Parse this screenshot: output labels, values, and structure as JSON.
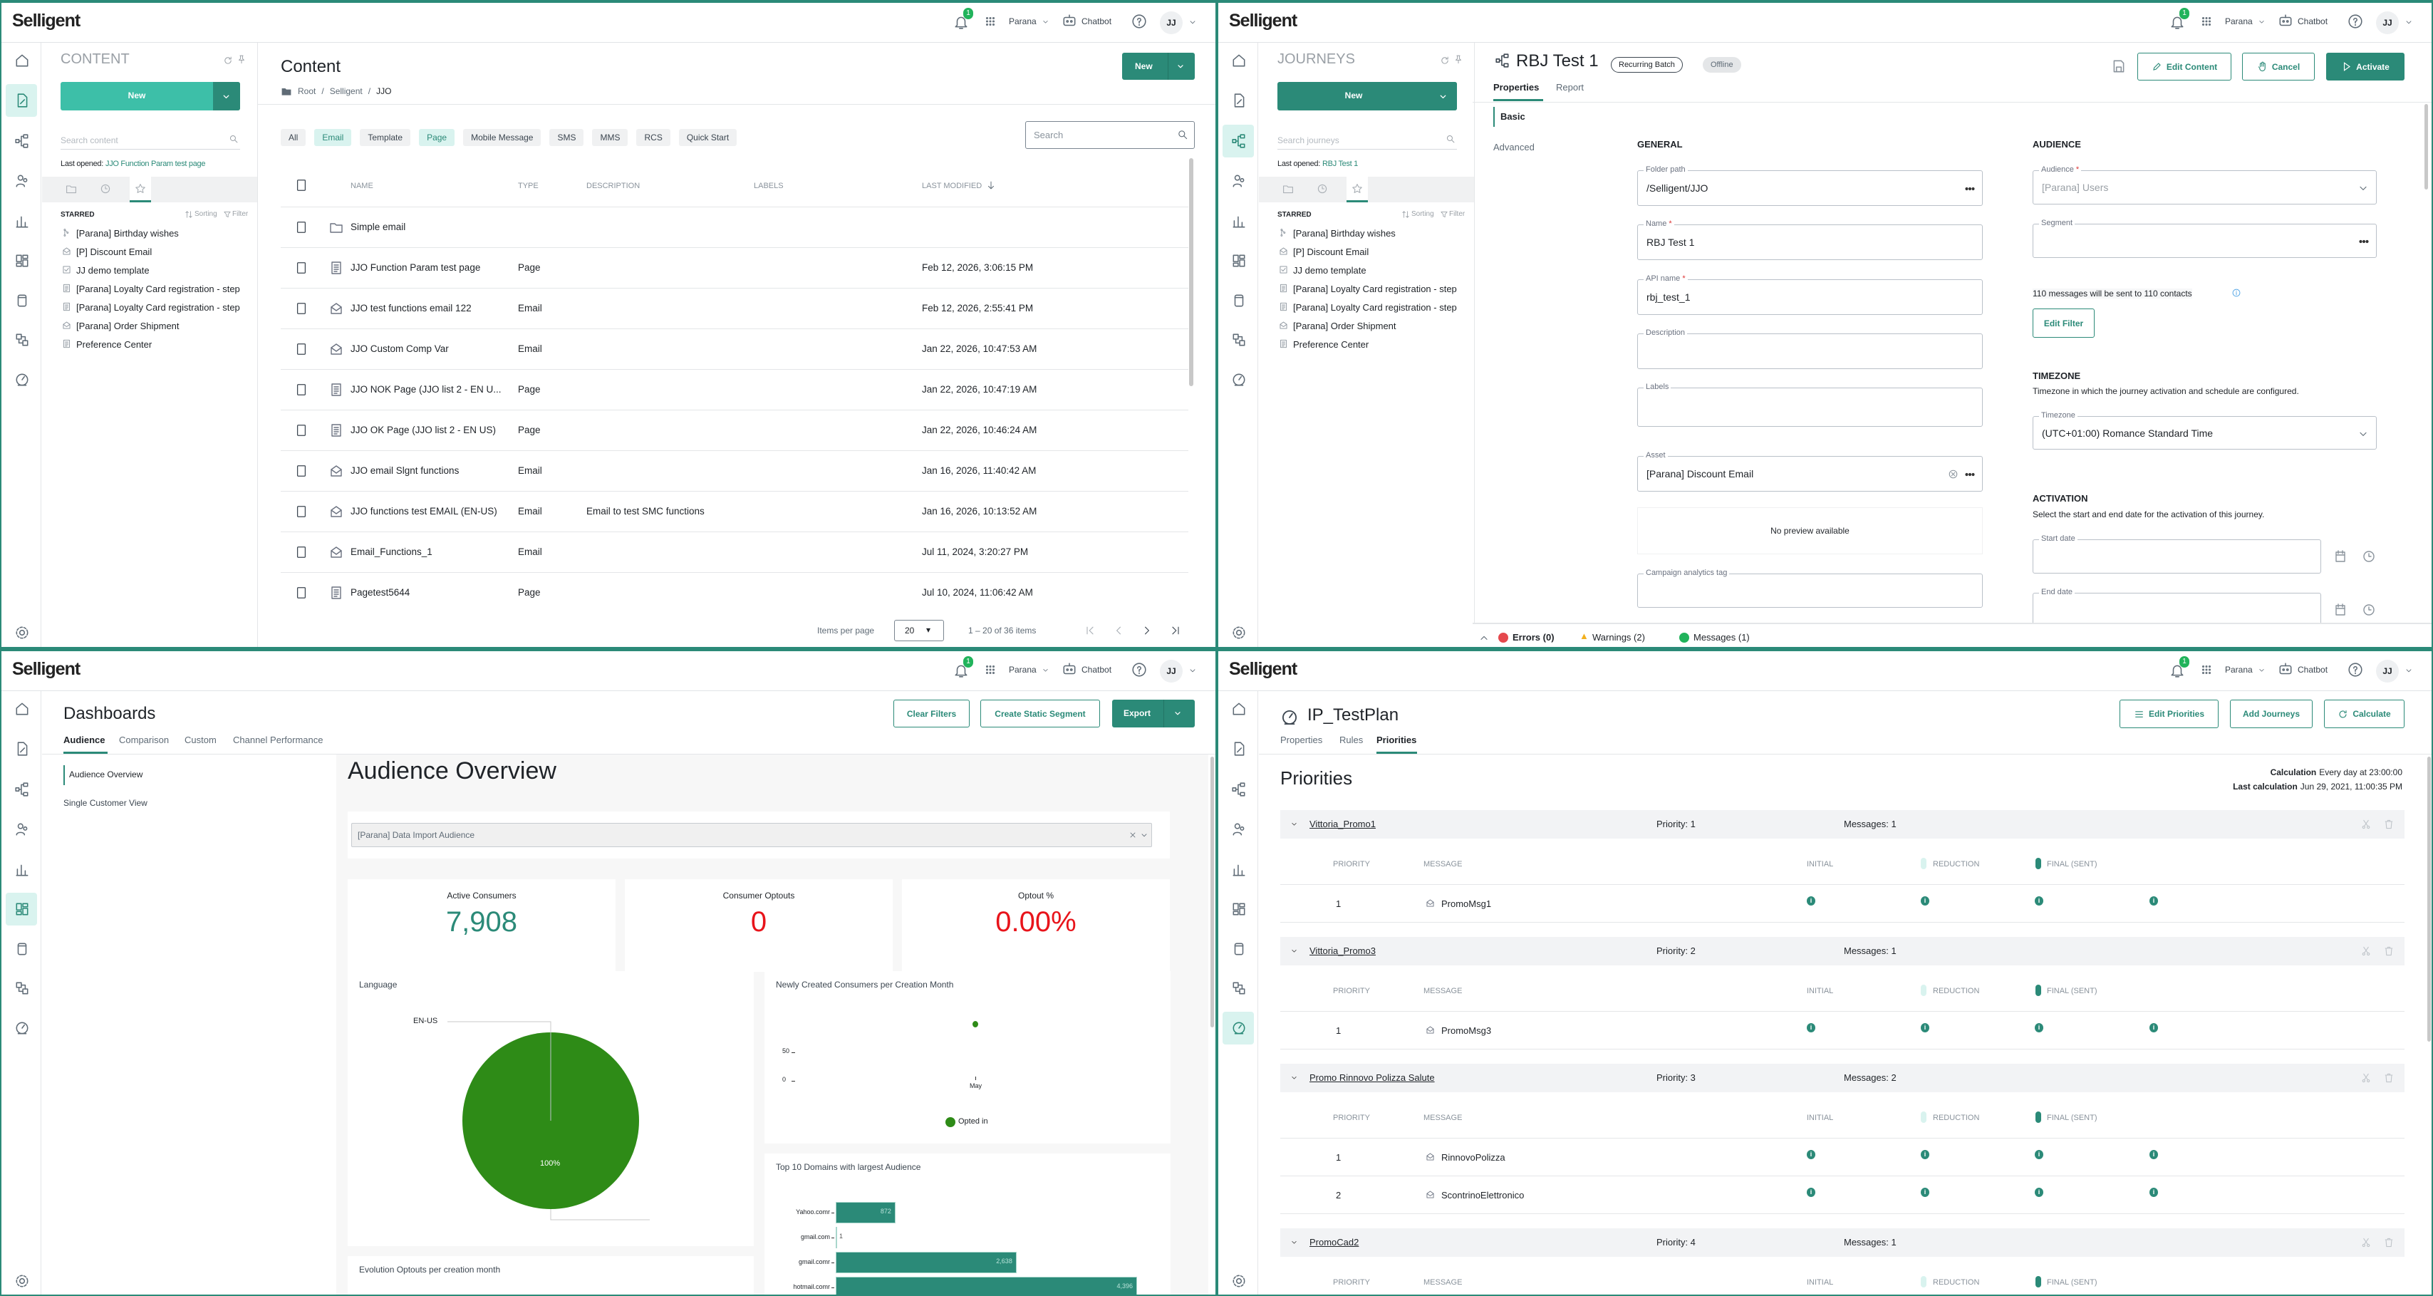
{
  "header": {
    "brand": "Selligent",
    "notifications": "1",
    "org": "Parana",
    "chatbot": "Chatbot",
    "user": "JJ"
  },
  "rail_icons": [
    "home",
    "content",
    "journeys",
    "audience",
    "reports",
    "dashboards",
    "data",
    "integrations",
    "priorities"
  ],
  "starred_common": {
    "starred_label": "STARRED",
    "sorting": "Sorting",
    "filter": "Filter",
    "items": [
      {
        "icon": "journey",
        "label": "[Parana] Birthday wishes"
      },
      {
        "icon": "email",
        "label": "[P] Discount Email"
      },
      {
        "icon": "template",
        "label": "JJ demo template"
      },
      {
        "icon": "page",
        "label": "[Parana] Loyalty Card registration - step"
      },
      {
        "icon": "page",
        "label": "[Parana] Loyalty Card registration - step"
      },
      {
        "icon": "email",
        "label": "[Parana] Order Shipment"
      },
      {
        "icon": "page",
        "label": "Preference Center"
      }
    ]
  },
  "content": {
    "sidebar": {
      "title": "CONTENT",
      "new_label": "New",
      "search_placeholder": "Search content",
      "last_opened_label": "Last opened:",
      "last_opened_value": "JJO Function Param test page"
    },
    "title": "Content",
    "new_label": "New",
    "breadcrumb": [
      "Root",
      "Selligent",
      "JJO"
    ],
    "filters": [
      {
        "label": "All",
        "active": false
      },
      {
        "label": "Email",
        "active": true
      },
      {
        "label": "Template",
        "active": false
      },
      {
        "label": "Page",
        "active": true
      },
      {
        "label": "Mobile Message",
        "active": false
      },
      {
        "label": "SMS",
        "active": false
      },
      {
        "label": "MMS",
        "active": false
      },
      {
        "label": "RCS",
        "active": false
      },
      {
        "label": "Quick Start",
        "active": false
      }
    ],
    "search_placeholder": "Search",
    "columns": {
      "name": "NAME",
      "type": "TYPE",
      "description": "DESCRIPTION",
      "labels": "LABELS",
      "modified": "LAST MODIFIED"
    },
    "rows": [
      {
        "icon": "folder",
        "name": "Simple email"
      },
      {
        "icon": "page",
        "name": "JJO Function Param test page",
        "type": "Page",
        "modified": "Feb 12, 2026, 3:06:15 PM"
      },
      {
        "icon": "email",
        "name": "JJO test functions email 122",
        "type": "Email",
        "modified": "Feb 12, 2026, 2:55:41 PM"
      },
      {
        "icon": "email",
        "name": "JJO Custom Comp Var",
        "type": "Email",
        "modified": "Jan 22, 2026, 10:47:53 AM"
      },
      {
        "icon": "page",
        "name": "JJO NOK Page (JJO list 2 - EN U...",
        "type": "Page",
        "modified": "Jan 22, 2026, 10:47:19 AM"
      },
      {
        "icon": "page",
        "name": "JJO OK Page (JJO list 2 - EN US)",
        "type": "Page",
        "modified": "Jan 22, 2026, 10:46:24 AM"
      },
      {
        "icon": "email",
        "name": "JJO email Slgnt functions",
        "type": "Email",
        "modified": "Jan 16, 2026, 11:40:42 AM"
      },
      {
        "icon": "email",
        "name": "JJO functions test EMAIL (EN-US)",
        "type": "Email",
        "description": "Email to test SMC functions",
        "modified": "Jan 16, 2026, 10:13:52 AM"
      },
      {
        "icon": "email",
        "name": "Email_Functions_1",
        "type": "Email",
        "modified": "Jul 11, 2024, 3:20:27 PM"
      },
      {
        "icon": "page",
        "name": "Pagetest5644",
        "type": "Page",
        "modified": "Jul 10, 2024, 11:06:42 AM"
      }
    ],
    "pagination": {
      "items_per_page_label": "Items per page",
      "per_page": "20",
      "range": "1 – 20 of 36 items"
    }
  },
  "journey": {
    "sidebar": {
      "title": "JOURNEYS",
      "new_label": "New",
      "search_placeholder": "Search journeys",
      "last_opened_label": "Last opened:",
      "last_opened_value": "RBJ Test 1"
    },
    "title": "RBJ Test 1",
    "badges": [
      "Recurring Batch",
      "Offline"
    ],
    "buttons": {
      "edit_content": "Edit Content",
      "cancel": "Cancel",
      "activate": "Activate"
    },
    "tabs": [
      "Properties",
      "Report"
    ],
    "subnav": [
      "Basic",
      "Advanced"
    ],
    "general": {
      "heading": "GENERAL",
      "folder_path_label": "Folder path",
      "folder_path": "/Selligent/JJO",
      "name_label": "Name",
      "name": "RBJ Test 1",
      "api_name_label": "API name",
      "api_name": "rbj_test_1",
      "description_label": "Description",
      "labels_label": "Labels",
      "asset_label": "Asset",
      "asset": "[Parana] Discount Email",
      "preview": "No preview available",
      "campaign_tag_label": "Campaign analytics tag"
    },
    "audience": {
      "heading": "AUDIENCE",
      "audience_label": "Audience",
      "audience": "[Parana] Users",
      "segment_label": "Segment",
      "summary": "110 messages will be sent to 110 contacts",
      "edit_filter": "Edit Filter"
    },
    "timezone": {
      "heading": "TIMEZONE",
      "description": "Timezone in which the journey activation and schedule are configured.",
      "label": "Timezone",
      "value": "(UTC+01:00) Romance Standard Time"
    },
    "activation": {
      "heading": "ACTIVATION",
      "description": "Select the start and end date for the activation of this journey.",
      "start_label": "Start date",
      "end_label": "End date"
    },
    "status": {
      "errors": "Errors (0)",
      "warnings": "Warnings (2)",
      "messages": "Messages (1)"
    }
  },
  "dashboard": {
    "title": "Dashboards",
    "tabs": [
      "Audience",
      "Comparison",
      "Custom",
      "Channel Performance"
    ],
    "buttons": {
      "clear": "Clear Filters",
      "segment": "Create Static Segment",
      "export": "Export"
    },
    "nav": [
      "Audience Overview",
      "Single Customer View"
    ],
    "heading": "Audience Overview",
    "audience_select": "[Parana] Data Import Audience",
    "kpis": [
      {
        "label": "Active Consumers",
        "value": "7,908",
        "color": "#2b8a78"
      },
      {
        "label": "Consumer Optouts",
        "value": "0",
        "color": "#e8141b"
      },
      {
        "label": "Optout %",
        "value": "0.00%",
        "color": "#e8141b"
      }
    ],
    "evolution_title": "Evolution Optouts per creation month"
  },
  "chart_data": [
    {
      "type": "pie",
      "title": "Language",
      "labels": [
        "EN-US"
      ],
      "values": [
        100
      ],
      "data_labels": [
        "100%"
      ],
      "color": "#2e8b17"
    },
    {
      "type": "scatter",
      "title": "Newly Created Consumers per Creation Month",
      "x": [
        "May"
      ],
      "series": [
        {
          "name": "Opted in",
          "values": [
            100
          ],
          "color": "#2e8b17"
        }
      ],
      "yticks": [
        0,
        50
      ],
      "ylim": [
        0,
        110
      ],
      "legend": "bottom"
    },
    {
      "type": "bar",
      "orientation": "horizontal",
      "title": "Top 10 Domains with largest Audience",
      "categories": [
        "Yahoo.comr",
        "gmail.com",
        "gmail.comr",
        "hotmail.comr"
      ],
      "values": [
        872,
        1,
        2638,
        4396
      ],
      "value_labels": [
        "872",
        "1",
        "2,638",
        "4,396"
      ],
      "color": "#2b8a78"
    }
  ],
  "priorities": {
    "title": "IP_TestPlan",
    "tabs": [
      "Properties",
      "Rules",
      "Priorities"
    ],
    "buttons": {
      "edit": "Edit Priorities",
      "add": "Add Journeys",
      "calculate": "Calculate"
    },
    "heading": "Priorities",
    "calculation_label": "Calculation",
    "calculation": "Every day at 23:00:00",
    "last_calc_label": "Last calculation",
    "last_calc": "Jun 29, 2021, 11:00:35 PM",
    "columns": {
      "priority": "PRIORITY",
      "message": "MESSAGE",
      "initial": "INITIAL",
      "reduction": "REDUCTION",
      "final": "FINAL (SENT)"
    },
    "groups": [
      {
        "name": "Vittoria_Promo1",
        "priority": "Priority: 1",
        "messages": "Messages: 1",
        "rows": [
          {
            "priority": "1",
            "message": "PromoMsg1"
          }
        ]
      },
      {
        "name": "Vittoria_Promo3",
        "priority": "Priority: 2",
        "messages": "Messages: 1",
        "rows": [
          {
            "priority": "1",
            "message": "PromoMsg3"
          }
        ]
      },
      {
        "name": "Promo Rinnovo Polizza Salute",
        "priority": "Priority: 3",
        "messages": "Messages: 2",
        "rows": [
          {
            "priority": "1",
            "message": "RinnovoPolizza"
          },
          {
            "priority": "2",
            "message": "ScontrinoElettronico"
          }
        ]
      },
      {
        "name": "PromoCad2",
        "priority": "Priority: 4",
        "messages": "Messages: 1",
        "rows": []
      }
    ]
  }
}
